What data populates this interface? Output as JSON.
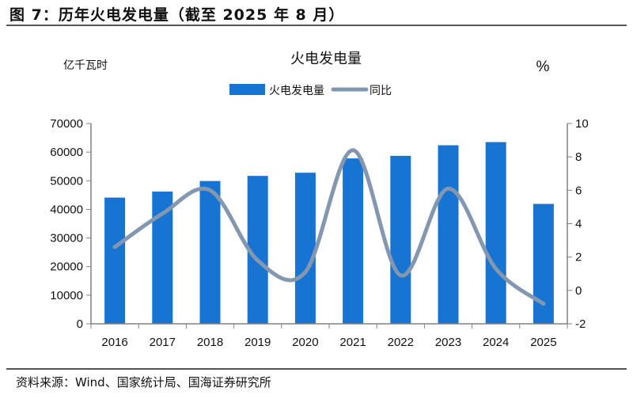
{
  "figure_title": "图 7：历年火电发电量（截至 2025 年 8 月）",
  "source": "资料来源：Wind、国家统计局、国海证券研究所",
  "chart_data": {
    "type": "bar+line",
    "title": "火电发电量",
    "ylabel_left": "亿千瓦时",
    "ylabel_right": "%",
    "categories": [
      "2016",
      "2017",
      "2018",
      "2019",
      "2020",
      "2021",
      "2022",
      "2023",
      "2024",
      "2025"
    ],
    "series": [
      {
        "name": "火电发电量",
        "type": "bar",
        "axis": "left",
        "color": "#1874D2",
        "values": [
          44100,
          46200,
          49900,
          51700,
          52800,
          57800,
          58700,
          62400,
          63500,
          41900
        ]
      },
      {
        "name": "同比",
        "type": "line",
        "axis": "right",
        "color": "#8497B0",
        "smooth": true,
        "values": [
          2.6,
          4.6,
          6.0,
          1.8,
          1.1,
          8.4,
          0.9,
          6.1,
          1.3,
          -0.8
        ]
      }
    ],
    "ylim_left": [
      0,
      70000
    ],
    "yticks_left": [
      "0",
      "10000",
      "20000",
      "30000",
      "40000",
      "50000",
      "60000",
      "70000"
    ],
    "ylim_right": [
      -2,
      10
    ],
    "yticks_right": [
      "-2",
      "0",
      "2",
      "4",
      "6",
      "8",
      "10"
    ],
    "grid": false,
    "legend": "top-center"
  }
}
